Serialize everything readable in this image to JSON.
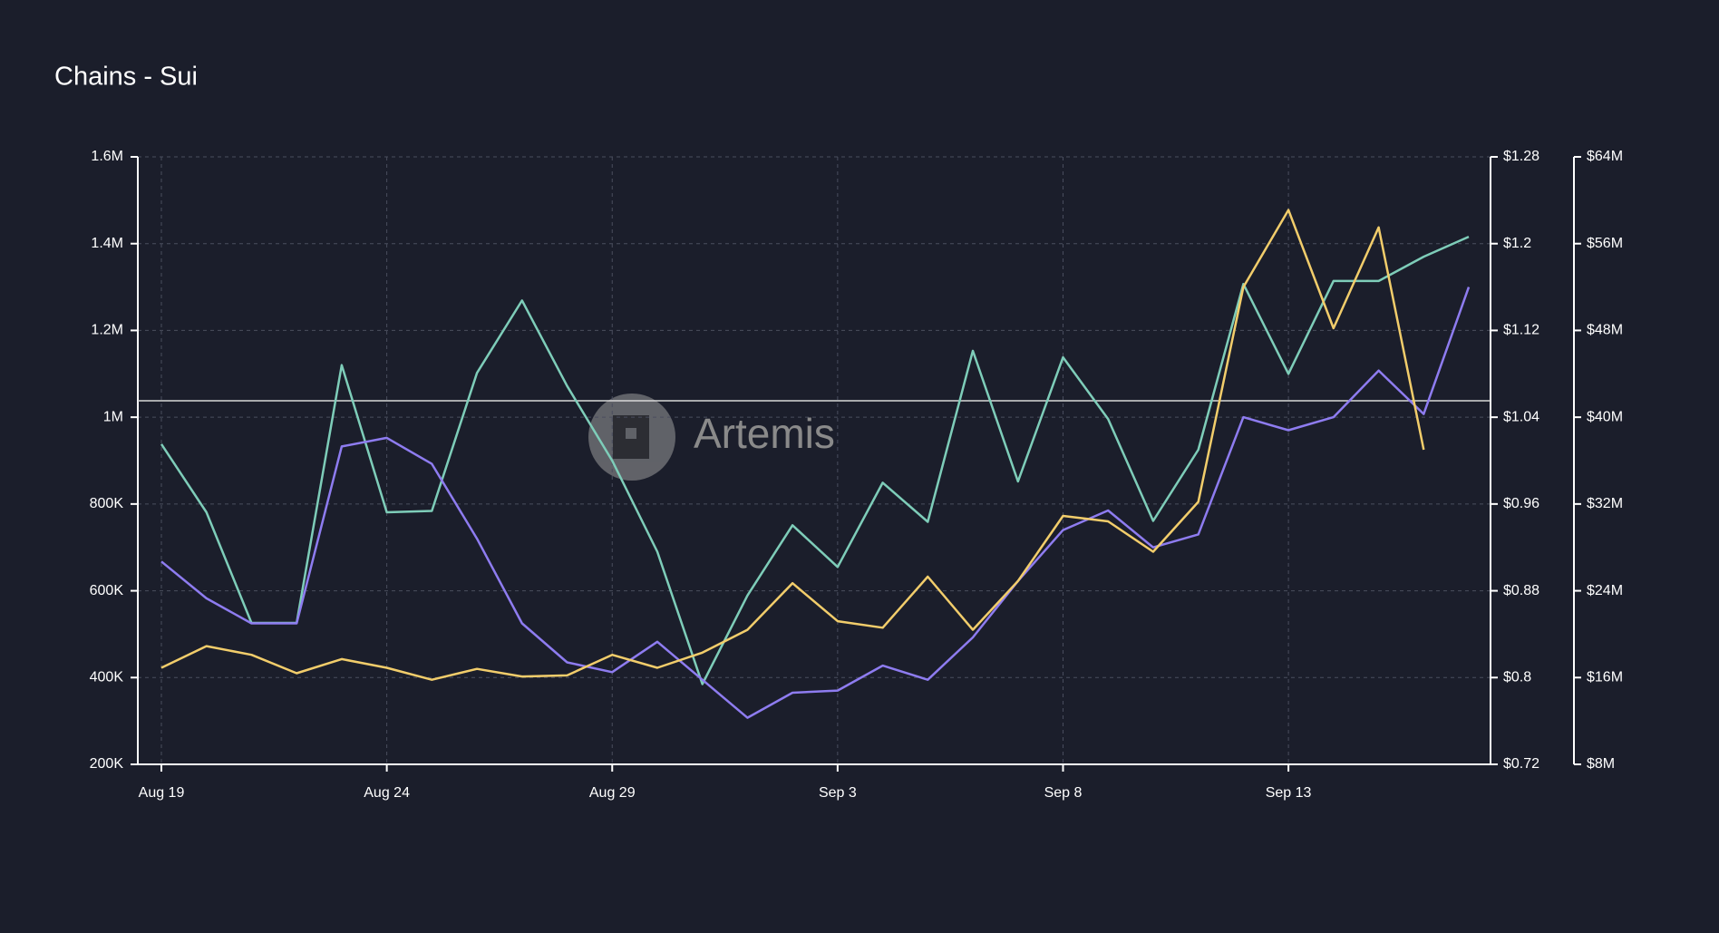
{
  "chart_data": {
    "type": "line",
    "title": "Chains - Sui",
    "watermark": "Artemis",
    "categories": [
      "Aug 19",
      null,
      null,
      null,
      null,
      "Aug 24",
      null,
      null,
      null,
      null,
      "Aug 29",
      null,
      null,
      null,
      null,
      "Sep 3",
      null,
      null,
      null,
      null,
      "Sep 8",
      null,
      null,
      null,
      null,
      "Sep 13",
      null,
      null,
      null,
      null
    ],
    "series": [
      {
        "color": "#7ecdb9",
        "axis": "y",
        "values": [
          938000,
          781000,
          526000,
          526000,
          1120000,
          781000,
          784000,
          1102000,
          1269000,
          1072000,
          900000,
          690000,
          385000,
          589000,
          751000,
          655000,
          849000,
          759000,
          1153000,
          852000,
          1138000,
          996000,
          761000,
          925000,
          1307000,
          1100000,
          1314000,
          1314000,
          1370000,
          1416000
        ]
      },
      {
        "color": "#8e7cf0",
        "axis": "y3",
        "values": [
          26700000,
          23300000,
          21000000,
          21000000,
          37300000,
          38100000,
          35700000,
          28800000,
          21000000,
          17400000,
          16500000,
          19300000,
          15800000,
          12300000,
          14600000,
          14800000,
          17100000,
          15800000,
          19700000,
          24900000,
          29600000,
          31400000,
          28000000,
          29200000,
          40000000,
          38800000,
          40000000,
          44300000,
          40300000,
          52000000
        ]
      },
      {
        "color": "#f2cd6b",
        "axis": "y2",
        "values": [
          0.809,
          0.829,
          0.821,
          0.804,
          0.817,
          0.809,
          0.798,
          0.808,
          0.801,
          0.802,
          0.821,
          0.809,
          0.823,
          0.844,
          0.887,
          0.852,
          0.846,
          0.893,
          0.844,
          0.889,
          0.949,
          0.944,
          0.916,
          0.962,
          1.16,
          1.231,
          1.122,
          1.215,
          1.01,
          null
        ]
      }
    ],
    "ylim": [
      200000,
      1600000
    ],
    "yticks": [
      {
        "value": 200000,
        "label": "200K"
      },
      {
        "value": 400000,
        "label": "400K"
      },
      {
        "value": 600000,
        "label": "600K"
      },
      {
        "value": 800000,
        "label": "800K"
      },
      {
        "value": 1000000,
        "label": "1M"
      },
      {
        "value": 1200000,
        "label": "1.2M"
      },
      {
        "value": 1400000,
        "label": "1.4M"
      },
      {
        "value": 1600000,
        "label": "1.6M"
      }
    ],
    "y2lim": [
      0.72,
      1.28
    ],
    "y2ticks": [
      {
        "value": 0.72,
        "label": "$0.72"
      },
      {
        "value": 0.8,
        "label": "$0.8"
      },
      {
        "value": 0.88,
        "label": "$0.88"
      },
      {
        "value": 0.96,
        "label": "$0.96"
      },
      {
        "value": 1.04,
        "label": "$1.04"
      },
      {
        "value": 1.12,
        "label": "$1.12"
      },
      {
        "value": 1.2,
        "label": "$1.2"
      },
      {
        "value": 1.28,
        "label": "$1.28"
      }
    ],
    "y3lim": [
      8000000,
      64000000
    ],
    "y3ticks": [
      {
        "value": 8000000,
        "label": "$8M"
      },
      {
        "value": 16000000,
        "label": "$16M"
      },
      {
        "value": 24000000,
        "label": "$24M"
      },
      {
        "value": 32000000,
        "label": "$32M"
      },
      {
        "value": 40000000,
        "label": "$40M"
      },
      {
        "value": 48000000,
        "label": "$48M"
      },
      {
        "value": 56000000,
        "label": "$56M"
      },
      {
        "value": 64000000,
        "label": "$64M"
      }
    ],
    "grid": true
  }
}
